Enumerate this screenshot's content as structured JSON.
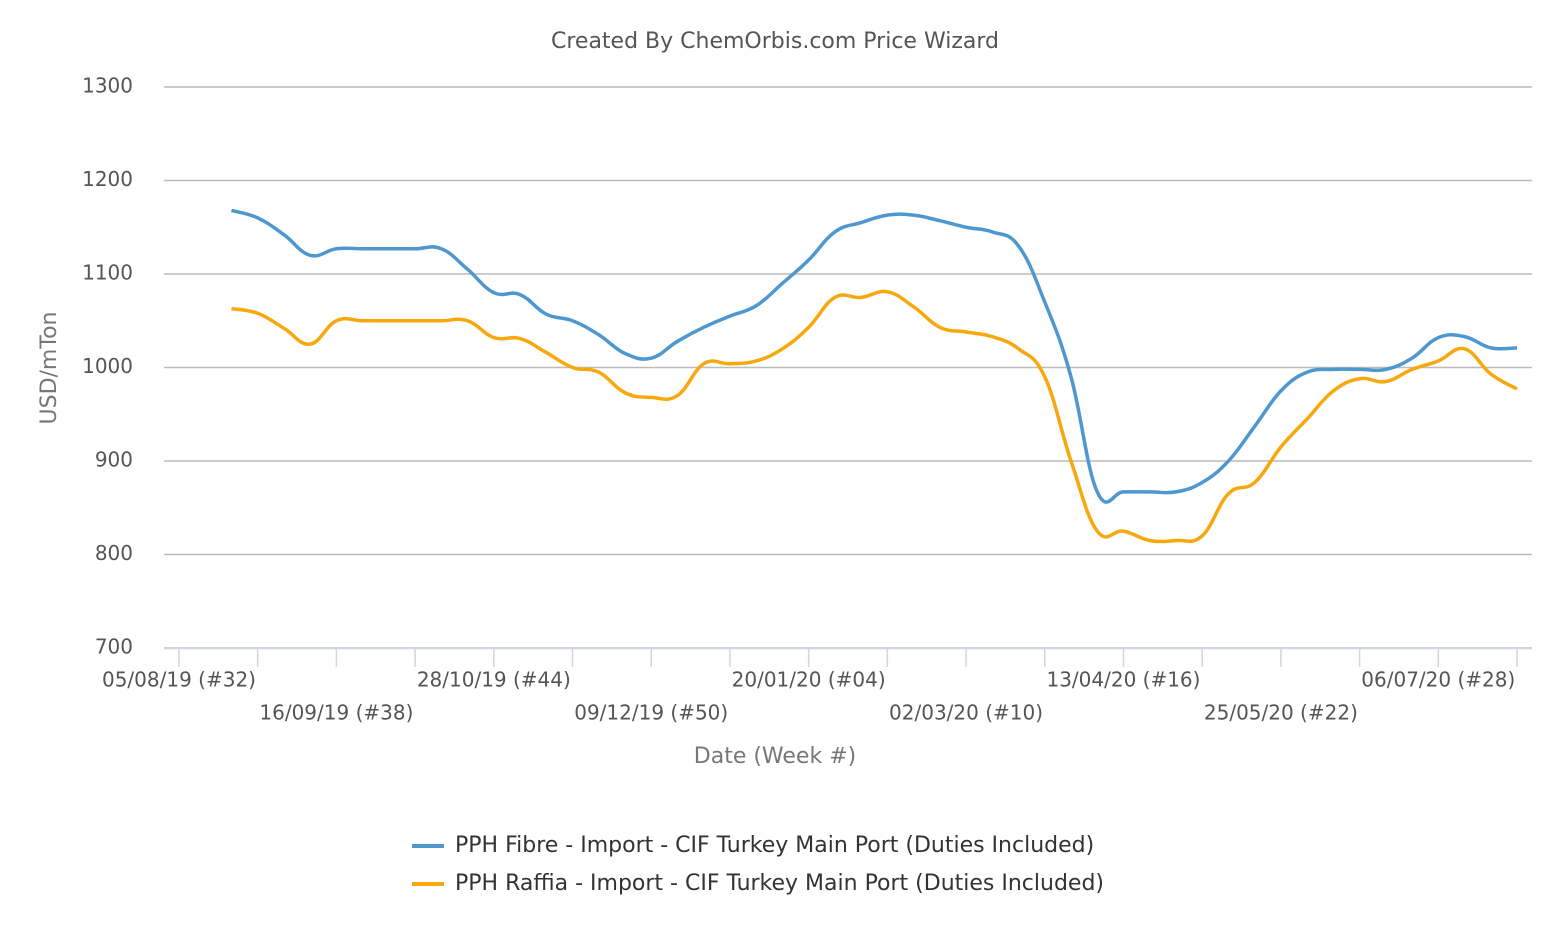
{
  "chart_data": {
    "type": "line",
    "title": "Created By ChemOrbis.com Price Wizard",
    "xlabel": "Date (Week #)",
    "ylabel": "USD/mTon",
    "x": [
      "19/08/19",
      "26/08/19",
      "02/09/19",
      "09/09/19",
      "16/09/19",
      "23/09/19",
      "30/09/19",
      "07/10/19",
      "14/10/19",
      "21/10/19",
      "28/10/19",
      "04/11/19",
      "11/11/19",
      "18/11/19",
      "25/11/19",
      "02/12/19",
      "09/12/19",
      "16/12/19",
      "23/12/19",
      "30/12/19",
      "06/01/20",
      "13/01/20",
      "20/01/20",
      "27/01/20",
      "03/02/20",
      "10/02/20",
      "17/02/20",
      "24/02/20",
      "02/03/20",
      "09/03/20",
      "16/03/20",
      "23/03/20",
      "30/03/20",
      "06/04/20",
      "13/04/20",
      "20/04/20",
      "27/04/20",
      "04/05/20",
      "11/05/20",
      "18/05/20",
      "25/05/20",
      "01/06/20",
      "08/06/20",
      "15/06/20",
      "22/06/20",
      "29/06/20",
      "06/07/20",
      "13/07/20",
      "20/07/20",
      "27/07/20"
    ],
    "series": [
      {
        "name": "PPH Fibre - Import - CIF Turkey Main Port (Duties Included)",
        "color": "#4e98cf",
        "values": [
          1168,
          1160,
          1142,
          1120,
          1127,
          1127,
          1127,
          1127,
          1127,
          1105,
          1080,
          1078,
          1057,
          1050,
          1035,
          1015,
          1010,
          1028,
          1043,
          1055,
          1066,
          1090,
          1115,
          1145,
          1155,
          1163,
          1163,
          1157,
          1150,
          1145,
          1130,
          1070,
          990,
          867,
          867,
          867,
          867,
          877,
          900,
          937,
          975,
          995,
          998,
          998,
          998,
          1010,
          1032,
          1033,
          1021,
          1021
        ]
      },
      {
        "name": "PPH Raffia - Import - CIF Turkey Main Port (Duties Included)",
        "color": "#f7a80d",
        "values": [
          1063,
          1058,
          1042,
          1025,
          1050,
          1050,
          1050,
          1050,
          1050,
          1050,
          1032,
          1031,
          1016,
          1000,
          995,
          973,
          968,
          970,
          1004,
          1004,
          1007,
          1020,
          1043,
          1075,
          1075,
          1081,
          1065,
          1043,
          1038,
          1033,
          1020,
          990,
          900,
          825,
          825,
          815,
          815,
          820,
          865,
          877,
          915,
          945,
          975,
          988,
          985,
          998,
          1007,
          1020,
          993,
          977
        ]
      }
    ],
    "xlim": [
      "01/08/19",
      "31/07/20"
    ],
    "xticks": [
      {
        "value": "05/08/19",
        "label": "05/08/19 (#32)"
      },
      {
        "value": "16/09/19",
        "label": "16/09/19 (#38)"
      },
      {
        "value": "28/10/19",
        "label": "28/10/19 (#44)"
      },
      {
        "value": "09/12/19",
        "label": "09/12/19 (#50)"
      },
      {
        "value": "20/01/20",
        "label": "20/01/20 (#04)"
      },
      {
        "value": "02/03/20",
        "label": "02/03/20 (#10)"
      },
      {
        "value": "13/04/20",
        "label": "13/04/20 (#16)"
      },
      {
        "value": "25/05/20",
        "label": "25/05/20 (#22)"
      },
      {
        "value": "06/07/20",
        "label": "06/07/20 (#28)"
      }
    ],
    "xminorticks": [
      "26/08/19",
      "07/10/19",
      "18/11/19",
      "30/12/19",
      "10/02/20",
      "23/03/20",
      "04/05/20",
      "15/06/20",
      "27/07/20"
    ],
    "ylim": [
      700,
      1300
    ],
    "yticks": [
      700,
      800,
      900,
      1000,
      1100,
      1200,
      1300
    ],
    "grid": true,
    "legend": "bottom"
  }
}
